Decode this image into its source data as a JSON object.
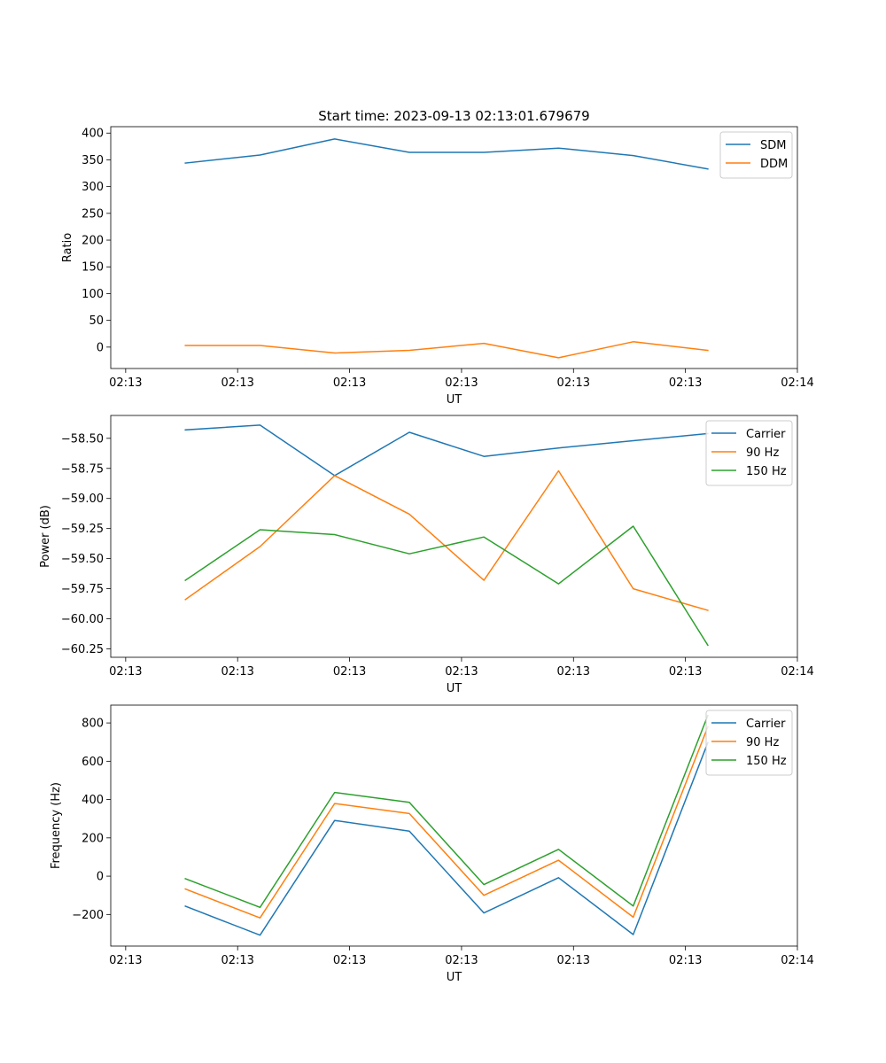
{
  "figure": {
    "title": "Start time: 2023-09-13 02:13:01.679679"
  },
  "colors": {
    "blue": "#1f77b4",
    "orange": "#ff7f0e",
    "green": "#2ca02c"
  },
  "chart_data": [
    {
      "type": "line",
      "title": "Start time: 2023-09-13 02:13:01.679679",
      "xlabel": "UT",
      "ylabel": "Ratio",
      "xlim": [
        0,
        9.2
      ],
      "x": [
        1,
        2,
        3,
        4,
        5,
        6,
        7,
        8
      ],
      "xticks": [
        0.2,
        1.7,
        3.2,
        4.7,
        6.2,
        7.7,
        9.2
      ],
      "xtick_labels": [
        "02:13",
        "02:13",
        "02:13",
        "02:13",
        "02:13",
        "02:13",
        "02:14"
      ],
      "ylim": [
        -40,
        412
      ],
      "yticks": [
        0,
        50,
        100,
        150,
        200,
        250,
        300,
        350,
        400
      ],
      "ytick_labels": [
        "0",
        "50",
        "100",
        "150",
        "200",
        "250",
        "300",
        "350",
        "400"
      ],
      "legend": "top-right",
      "series": [
        {
          "name": "SDM",
          "color": "#1f77b4",
          "values": [
            344,
            359,
            389,
            364,
            364,
            372,
            358,
            333
          ]
        },
        {
          "name": "DDM",
          "color": "#ff7f0e",
          "values": [
            3,
            3,
            -11,
            -6,
            7,
            -20,
            10,
            -6
          ]
        }
      ]
    },
    {
      "type": "line",
      "title": "",
      "xlabel": "UT",
      "ylabel": "Power (dB)",
      "xlim": [
        0,
        9.2
      ],
      "x": [
        1,
        2,
        3,
        4,
        5,
        6,
        7,
        8
      ],
      "xticks": [
        0.2,
        1.7,
        3.2,
        4.7,
        6.2,
        7.7,
        9.2
      ],
      "xtick_labels": [
        "02:13",
        "02:13",
        "02:13",
        "02:13",
        "02:13",
        "02:13",
        "02:14"
      ],
      "ylim": [
        -60.32,
        -58.31
      ],
      "yticks": [
        -60.25,
        -60.0,
        -59.75,
        -59.5,
        -59.25,
        -59.0,
        -58.75,
        -58.5
      ],
      "ytick_labels": [
        "−60.25",
        "−60.00",
        "−59.75",
        "−59.50",
        "−59.25",
        "−59.00",
        "−58.75",
        "−58.50"
      ],
      "legend": "top-right",
      "series": [
        {
          "name": "Carrier",
          "color": "#1f77b4",
          "values": [
            -58.43,
            -58.39,
            -58.81,
            -58.45,
            -58.65,
            -58.58,
            -58.52,
            -58.46
          ]
        },
        {
          "name": "90 Hz",
          "color": "#ff7f0e",
          "values": [
            -59.84,
            -59.4,
            -58.81,
            -59.13,
            -59.68,
            -58.77,
            -59.75,
            -59.93
          ]
        },
        {
          "name": "150 Hz",
          "color": "#2ca02c",
          "values": [
            -59.68,
            -59.26,
            -59.3,
            -59.46,
            -59.32,
            -59.71,
            -59.23,
            -60.22
          ]
        }
      ]
    },
    {
      "type": "line",
      "title": "",
      "xlabel": "UT",
      "ylabel": "Frequency (Hz)",
      "xlim": [
        0,
        9.2
      ],
      "x": [
        1,
        2,
        3,
        4,
        5,
        6,
        7,
        8
      ],
      "xticks": [
        0.2,
        1.7,
        3.2,
        4.7,
        6.2,
        7.7,
        9.2
      ],
      "xtick_labels": [
        "02:13",
        "02:13",
        "02:13",
        "02:13",
        "02:13",
        "02:13",
        "02:14"
      ],
      "ylim": [
        -365,
        893
      ],
      "yticks": [
        -200,
        0,
        200,
        400,
        600,
        800
      ],
      "ytick_labels": [
        "−200",
        "0",
        "200",
        "400",
        "600",
        "800"
      ],
      "legend": "top-right",
      "series": [
        {
          "name": "Carrier",
          "color": "#1f77b4",
          "values": [
            -157,
            -308,
            291,
            235,
            -192,
            -8,
            -305,
            697
          ]
        },
        {
          "name": "90 Hz",
          "color": "#ff7f0e",
          "values": [
            -67,
            -218,
            379,
            327,
            -100,
            83,
            -214,
            779
          ]
        },
        {
          "name": "150 Hz",
          "color": "#2ca02c",
          "values": [
            -13,
            -163,
            437,
            385,
            -44,
            140,
            -156,
            839
          ]
        }
      ]
    }
  ]
}
